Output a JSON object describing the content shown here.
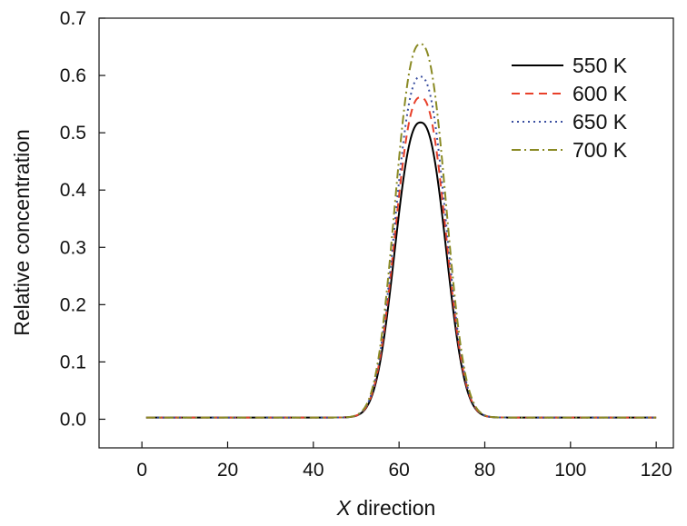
{
  "chart_data": {
    "type": "line",
    "title": "",
    "xlabel_var": "X",
    "xlabel_rest": " direction",
    "ylabel": "Relative concentration",
    "xlim": [
      -10,
      124
    ],
    "ylim": [
      -0.05,
      0.7
    ],
    "xticks": [
      0,
      20,
      40,
      60,
      80,
      100,
      120
    ],
    "yticks": [
      0.0,
      0.1,
      0.2,
      0.3,
      0.4,
      0.5,
      0.6,
      0.7
    ],
    "ytick_labels": [
      "0.0",
      "0.1",
      "0.2",
      "0.3",
      "0.4",
      "0.5",
      "0.6",
      "0.7"
    ],
    "legend_position": "top-right",
    "x_range": [
      1,
      120
    ],
    "baseline": 0.003,
    "peak_x": 65,
    "series": [
      {
        "name": "550 K",
        "color": "#000000",
        "dash": "solid",
        "peak": 0.518
      },
      {
        "name": "600 K",
        "color": "#e8402a",
        "dash": "dashed",
        "peak": 0.562
      },
      {
        "name": "650 K",
        "color": "#3a4fa0",
        "dash": "dotted",
        "peak": 0.598
      },
      {
        "name": "700 K",
        "color": "#8a8a24",
        "dash": "dashdot",
        "peak": 0.655
      }
    ]
  }
}
